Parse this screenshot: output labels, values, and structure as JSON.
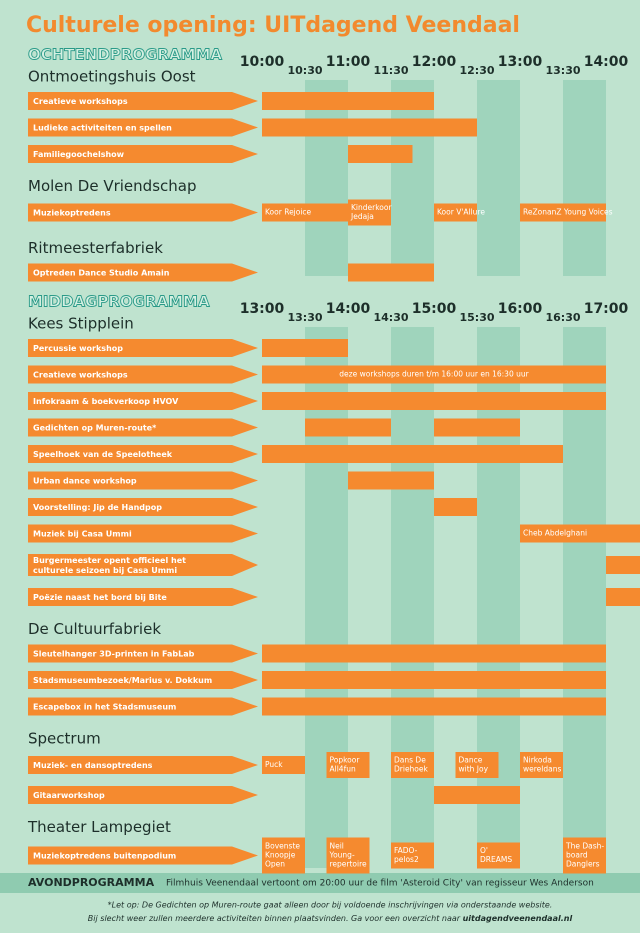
{
  "title": "Culturele opening: UITdagend Veendaal",
  "sections": [
    {
      "heading": "OCHTENDPROGRAMMA",
      "times": [
        "10:00",
        "10:30",
        "11:00",
        "11:30",
        "12:00",
        "12:30",
        "13:00",
        "13:30",
        "14:00"
      ],
      "venues": [
        {
          "name": "Ontmoetingshuis Oost",
          "rows": [
            {
              "label": "Creatieve workshops",
              "bars": [
                {
                  "start": "10:00",
                  "end": "12:00"
                }
              ]
            },
            {
              "label": "Ludieke activiteiten en spellen",
              "bars": [
                {
                  "start": "10:00",
                  "end": "12:30"
                }
              ]
            },
            {
              "label": "Familiegoochelshow",
              "bars": [
                {
                  "start": "11:00",
                  "end": "11:45"
                }
              ]
            }
          ]
        },
        {
          "name": "Molen De Vriendschap",
          "rows": [
            {
              "label": "Muziekoptredens",
              "bars": [
                {
                  "start": "10:00",
                  "end": "11:00",
                  "label": [
                    "Koor Rejoice"
                  ]
                },
                {
                  "start": "11:00",
                  "end": "11:30",
                  "label": [
                    "Kinderkoor",
                    "Jedaja"
                  ]
                },
                {
                  "start": "12:00",
                  "end": "12:30",
                  "label": [
                    "Koor V'Allure"
                  ]
                },
                {
                  "start": "13:00",
                  "end": "14:00",
                  "label": [
                    "ReZonanZ Young Voices"
                  ]
                }
              ]
            }
          ]
        },
        {
          "name": "Ritmeesterfabriek",
          "rows": [
            {
              "label": "Optreden Dance Studio Amain",
              "bars": [
                {
                  "start": "11:00",
                  "end": "12:00"
                }
              ]
            }
          ]
        }
      ]
    },
    {
      "heading": "MIDDAGPROGRAMMA",
      "times": [
        "13:00",
        "13:30",
        "14:00",
        "14:30",
        "15:00",
        "15:30",
        "16:00",
        "16:30",
        "17:00"
      ],
      "venues": [
        {
          "name": "Kees Stipplein",
          "rows": [
            {
              "label": "Percussie workshop",
              "bars": [
                {
                  "start": "13:00",
                  "end": "14:00"
                }
              ]
            },
            {
              "label": "Creatieve workshops",
              "bars": [
                {
                  "start": "13:00",
                  "end": "17:00",
                  "label": [
                    "deze workshops duren t/m 16:00 uur en 16:30 uur"
                  ]
                }
              ]
            },
            {
              "label": "Infokraam & boekverkoop HVOV",
              "bars": [
                {
                  "start": "13:00",
                  "end": "17:00"
                }
              ]
            },
            {
              "label": "Gedichten op Muren-route*",
              "bars": [
                {
                  "start": "13:30",
                  "end": "14:30"
                },
                {
                  "start": "15:00",
                  "end": "16:00"
                }
              ]
            },
            {
              "label": "Speelhoek van de Speelotheek",
              "bars": [
                {
                  "start": "13:00",
                  "end": "16:30"
                }
              ]
            },
            {
              "label": "Urban dance workshop",
              "bars": [
                {
                  "start": "14:00",
                  "end": "15:00"
                }
              ]
            },
            {
              "label": "Voorstelling: Jip de Handpop",
              "bars": [
                {
                  "start": "15:00",
                  "end": "15:30"
                }
              ]
            },
            {
              "label": "Muziek bij Casa Ummi",
              "bars": [
                {
                  "start": "16:00",
                  "end": "17:30",
                  "label": [
                    "Cheb Abdelghani"
                  ]
                }
              ]
            },
            {
              "label": [
                "Burgermeester opent officieel het",
                "culturele seizoen bij Casa Ummi"
              ],
              "bars": [
                {
                  "start": "17:00",
                  "end": "17:30"
                }
              ]
            },
            {
              "label": "Poëzie naast het bord bij Bite",
              "bars": [
                {
                  "start": "17:00",
                  "end": "17:30"
                }
              ]
            }
          ]
        },
        {
          "name": "De Cultuurfabriek",
          "rows": [
            {
              "label": "Sleutelhanger 3D-printen in FabLab",
              "bars": [
                {
                  "start": "13:00",
                  "end": "17:00"
                }
              ]
            },
            {
              "label": "Stadsmuseumbezoek/Marius v. Dokkum",
              "bars": [
                {
                  "start": "13:00",
                  "end": "17:00"
                }
              ]
            },
            {
              "label": "Escapebox in het Stadsmuseum",
              "bars": [
                {
                  "start": "13:00",
                  "end": "17:00"
                }
              ]
            }
          ]
        },
        {
          "name": "Spectrum",
          "rows": [
            {
              "label": "Muziek- en dansoptredens",
              "bars": [
                {
                  "start": "13:00",
                  "end": "13:30",
                  "label": [
                    "Puck"
                  ]
                },
                {
                  "start": "13:45",
                  "end": "14:15",
                  "label": [
                    "Popkoor",
                    "All4fun"
                  ]
                },
                {
                  "start": "14:30",
                  "end": "15:00",
                  "label": [
                    "Dans De",
                    "Driehoek"
                  ]
                },
                {
                  "start": "15:15",
                  "end": "15:45",
                  "label": [
                    "Dance",
                    "with Joy"
                  ]
                },
                {
                  "start": "16:00",
                  "end": "16:30",
                  "label": [
                    "Nirkoda",
                    "wereldans"
                  ]
                }
              ]
            },
            {
              "label": "Gitaarworkshop",
              "bars": [
                {
                  "start": "15:00",
                  "end": "16:00"
                }
              ]
            }
          ]
        },
        {
          "name": "Theater Lampegiet",
          "rows": [
            {
              "label": "Muziekoptredens buitenpodium",
              "bars": [
                {
                  "start": "13:00",
                  "end": "13:30",
                  "label": [
                    "Bovenste",
                    "Knoopje",
                    "Open"
                  ]
                },
                {
                  "start": "13:45",
                  "end": "14:15",
                  "label": [
                    "Neil",
                    "Young-",
                    "repertoire"
                  ]
                },
                {
                  "start": "14:30",
                  "end": "15:00",
                  "label": [
                    "FADO-",
                    "pelos2"
                  ]
                },
                {
                  "start": "15:30",
                  "end": "16:00",
                  "label": [
                    "O'",
                    "DREAMS"
                  ]
                },
                {
                  "start": "16:30",
                  "end": "17:00",
                  "label": [
                    "The Dash-",
                    "board",
                    "Danglers"
                  ]
                }
              ]
            }
          ]
        }
      ]
    }
  ],
  "evening": {
    "heading": "AVONDPROGRAMMA",
    "text": "Filmhuis Veenendaal vertoont om 20:00 uur de film 'Asteroid City' van regisseur Wes Anderson"
  },
  "footnote": {
    "line1": "*Let op: De Gedichten op Muren-route gaat alleen door bij voldoende inschrijvingen via onderstaande website.",
    "line2": "Bij slecht weer zullen meerdere activiteiten binnen plaatsvinden. Ga voor een overzicht naar ",
    "link": "uitdagendveenendaal.nl"
  }
}
